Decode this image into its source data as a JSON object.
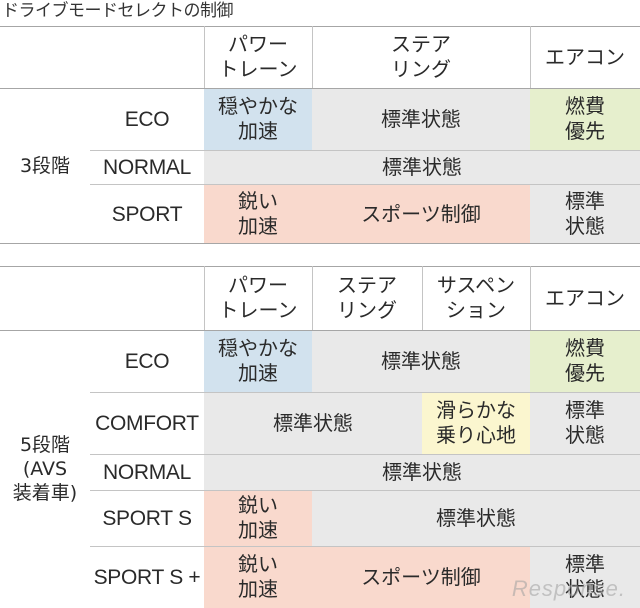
{
  "title": "ドライブモードセレクトの制御",
  "table1": {
    "group_label": "3段階",
    "headers": [
      "パワー\nトレーン",
      "ステア\nリング",
      "エアコン"
    ],
    "modes": [
      "ECO",
      "NORMAL",
      "SPORT"
    ],
    "cells": {
      "eco_powertrain": "穏やかな\n加速",
      "eco_steering": "標準状態",
      "eco_aircon": "燃費\n優先",
      "normal_all": "標準状態",
      "sport_powertrain": "鋭い\n加速",
      "sport_steering": "スポーツ制御",
      "sport_aircon": "標準\n状態"
    }
  },
  "table2": {
    "group_label": "5段階\n(AVS\n装着車)",
    "headers": [
      "パワー\nトレーン",
      "ステア\nリング",
      "サスペン\nション",
      "エアコン"
    ],
    "modes": [
      "ECO",
      "COMFORT",
      "NORMAL",
      "SPORT S",
      "SPORT S +"
    ],
    "cells": {
      "eco_powertrain": "穏やかな\n加速",
      "eco_mid": "標準状態",
      "eco_aircon": "燃費\n優先",
      "comfort_left": "標準状態",
      "comfort_suspension": "滑らかな\n乗り心地",
      "comfort_aircon": "標準\n状態",
      "normal_all": "標準状態",
      "sports_powertrain": "鋭い\n加速",
      "sports_mid": "標準状態",
      "sportsplus_powertrain": "鋭い\n加速",
      "sportsplus_mid": "スポーツ制御",
      "sportsplus_aircon": "標準\n状態"
    }
  },
  "watermark": "Response.",
  "colors": {
    "gray": "#e9e9e9",
    "blue": "#d2e2ee",
    "green": "#e6efcd",
    "pink": "#f9d9cd",
    "yellow": "#fbf6cf"
  }
}
